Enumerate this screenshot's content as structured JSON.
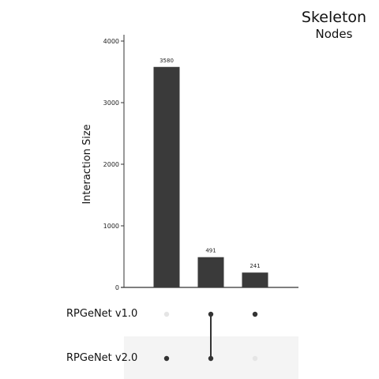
{
  "title": "Skeleton",
  "subtitle": "Nodes",
  "chart_data": {
    "type": "bar",
    "chart_kind": "upset",
    "ylabel": "Interaction Size",
    "xlabel": "",
    "ylim": [
      0,
      4000
    ],
    "yticks": [
      0,
      1000,
      2000,
      3000,
      4000
    ],
    "sets": [
      "RPGeNet v1.0",
      "RPGeNet v2.0"
    ],
    "intersections": [
      {
        "value": 3580,
        "label": "3580",
        "members": [
          "RPGeNet v2.0"
        ]
      },
      {
        "value": 491,
        "label": "491",
        "members": [
          "RPGeNet v1.0",
          "RPGeNet v2.0"
        ]
      },
      {
        "value": 241,
        "label": "241",
        "members": [
          "RPGeNet v1.0"
        ]
      }
    ],
    "colors": {
      "bar": "#3a3a3a",
      "dot_active": "#333333",
      "dot_inactive": "#e5e5e5",
      "row_shade": "#f4f4f4"
    }
  }
}
